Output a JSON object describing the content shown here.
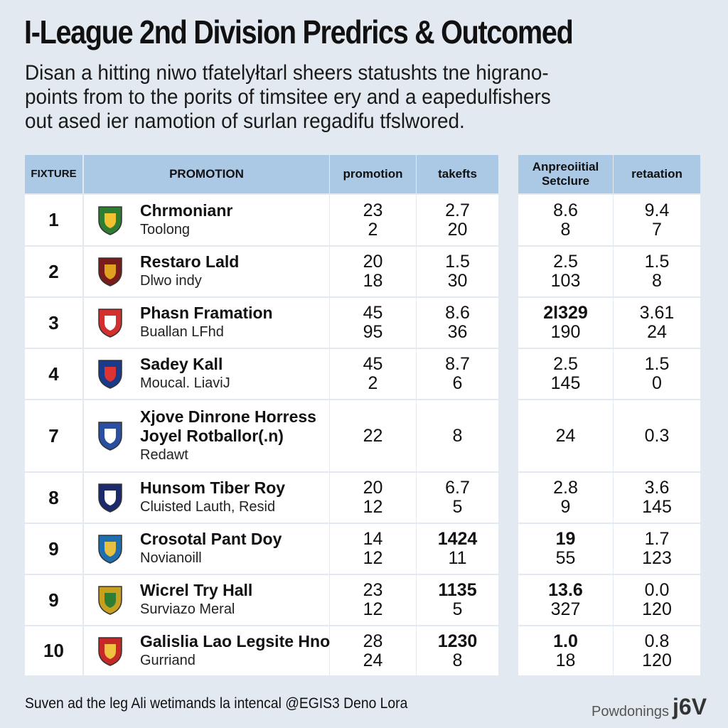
{
  "header": {
    "title": "I-League 2nd Division Predrics  & Outcomed",
    "intro": [
      "Disan a hitting niwo tfatelyłtarl sheers statushts tne higrano-",
      "points from to the porits of timsitee ery and a eapedulfishers",
      "out ased ier namotion of surlan regadifu tfslwored."
    ]
  },
  "table": {
    "columns": [
      "FIXTURE",
      "PROMOTION",
      "promotion",
      "takefts",
      [
        "Anpreoiitial",
        "Setclure"
      ],
      "retaation"
    ],
    "rows": [
      {
        "fixture": "1",
        "name": [
          "Chrmonianr"
        ],
        "sub": "Toolong",
        "cells": [
          {
            "lines": [
              "23",
              "2"
            ]
          },
          {
            "lines": [
              "2.7",
              "20"
            ]
          },
          {
            "lines": [
              "8.6",
              "8"
            ]
          },
          {
            "lines": [
              "9.4",
              "7"
            ]
          }
        ]
      },
      {
        "fixture": "2",
        "name": [
          "Restaro Lald"
        ],
        "sub": "Dlwo indy",
        "cells": [
          {
            "lines": [
              "20",
              "18"
            ]
          },
          {
            "lines": [
              "1.5",
              "30"
            ]
          },
          {
            "lines": [
              "2.5",
              "103"
            ]
          },
          {
            "lines": [
              "1.5",
              "8"
            ]
          }
        ]
      },
      {
        "fixture": "3",
        "name": [
          "Phasn Framation"
        ],
        "sub": "Buallan LFhd",
        "cells": [
          {
            "lines": [
              "45",
              "95"
            ]
          },
          {
            "lines": [
              "8.6",
              "36"
            ]
          },
          {
            "lines": [
              "2l329",
              "190"
            ],
            "bold": true
          },
          {
            "lines": [
              "3.61",
              "24"
            ]
          }
        ]
      },
      {
        "fixture": "4",
        "name": [
          "Sadey Kall"
        ],
        "sub": "Moucal. LiaviJ",
        "cells": [
          {
            "lines": [
              "45",
              "2"
            ]
          },
          {
            "lines": [
              "8.7",
              "6"
            ]
          },
          {
            "lines": [
              "2.5",
              "145"
            ]
          },
          {
            "lines": [
              "1.5",
              "0"
            ]
          }
        ]
      },
      {
        "fixture": "7",
        "name": [
          "Xjove Dinrone Horress",
          "Joyel Rotballor(.n)"
        ],
        "sub": "Redawt",
        "cells": [
          {
            "lines": [
              "22"
            ]
          },
          {
            "lines": [
              "8"
            ]
          },
          {
            "lines": [
              "24"
            ]
          },
          {
            "lines": [
              "0.3"
            ]
          }
        ]
      },
      {
        "fixture": "8",
        "name": [
          "Hunsom Tiber Roy"
        ],
        "sub": "Cluisted Lauth, Resid",
        "cells": [
          {
            "lines": [
              "20",
              "12"
            ]
          },
          {
            "lines": [
              "6.7",
              "5"
            ]
          },
          {
            "lines": [
              "2.8",
              "9"
            ]
          },
          {
            "lines": [
              "3.6",
              "145"
            ]
          }
        ]
      },
      {
        "fixture": "9",
        "name": [
          "Crosotal Pant Doy"
        ],
        "sub": "Novianoill",
        "cells": [
          {
            "lines": [
              "14",
              "12"
            ]
          },
          {
            "lines": [
              "1424",
              "11"
            ],
            "bold": true
          },
          {
            "lines": [
              "19",
              "55"
            ],
            "bold": true
          },
          {
            "lines": [
              "1.7",
              "123"
            ]
          }
        ]
      },
      {
        "fixture": "9",
        "name": [
          "Wicrel Try Hall"
        ],
        "sub": "Surviazo Meral",
        "cells": [
          {
            "lines": [
              "23",
              "12"
            ]
          },
          {
            "lines": [
              "1135",
              "5"
            ],
            "bold": true
          },
          {
            "lines": [
              "13.6",
              "327"
            ],
            "bold": true
          },
          {
            "lines": [
              "0.0",
              "120"
            ]
          }
        ]
      },
      {
        "fixture": "10",
        "name": [
          "Galislia Lao Legsite Hno"
        ],
        "sub": "Gurriand",
        "cells": [
          {
            "lines": [
              "28",
              "24"
            ]
          },
          {
            "lines": [
              "1230",
              "8"
            ],
            "bold": true
          },
          {
            "lines": [
              "1.0",
              "18"
            ],
            "bold": true
          },
          {
            "lines": [
              "0.8",
              "120"
            ]
          }
        ]
      }
    ]
  },
  "footer": {
    "note": "Suven ad the leg Ali wetimands la intencal @EGIS3 Deno Lora",
    "brand": "Powdonings",
    "logo": "j6V"
  }
}
